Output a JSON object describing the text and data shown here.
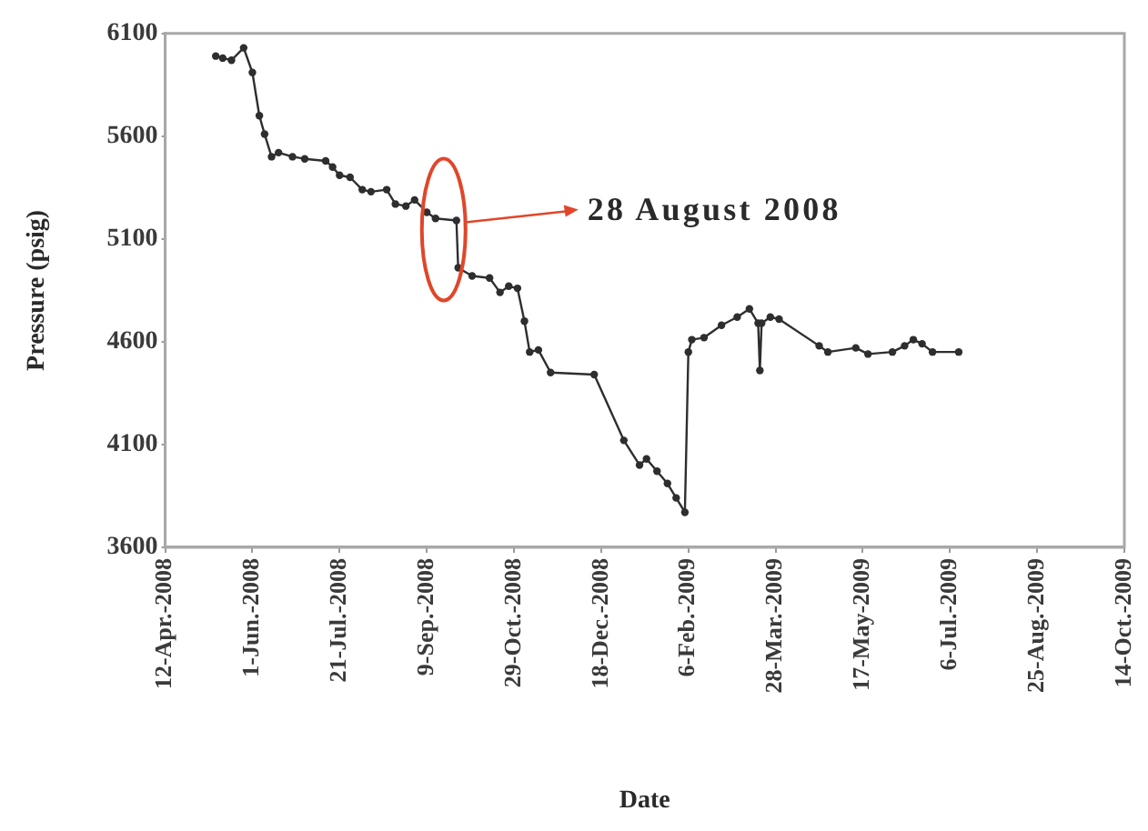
{
  "chart_data": {
    "type": "line",
    "xlabel": "Date",
    "ylabel": "Pressure (psig)",
    "x": [
      "2008-05-11",
      "2008-05-15",
      "2008-05-20",
      "2008-05-27",
      "2008-06-01",
      "2008-06-05",
      "2008-06-08",
      "2008-06-12",
      "2008-06-16",
      "2008-06-24",
      "2008-07-01",
      "2008-07-13",
      "2008-07-17",
      "2008-07-21",
      "2008-07-27",
      "2008-08-03",
      "2008-08-08",
      "2008-08-17",
      "2008-08-22",
      "2008-08-28",
      "2008-09-02",
      "2008-09-09",
      "2008-09-14",
      "2008-09-26",
      "2008-09-27",
      "2008-10-05",
      "2008-10-15",
      "2008-10-21",
      "2008-10-26",
      "2008-10-31",
      "2008-11-04",
      "2008-11-07",
      "2008-11-12",
      "2008-11-19",
      "2008-12-14",
      "2008-12-31",
      "2009-01-09",
      "2009-01-13",
      "2009-01-19",
      "2009-01-25",
      "2009-01-30",
      "2009-02-04",
      "2009-02-06",
      "2009-02-08",
      "2009-02-15",
      "2009-02-25",
      "2009-03-06",
      "2009-03-13",
      "2009-03-18",
      "2009-03-19",
      "2009-03-20",
      "2009-03-25",
      "2009-03-30",
      "2009-04-22",
      "2009-04-27",
      "2009-05-13",
      "2009-05-20",
      "2009-06-03",
      "2009-06-10",
      "2009-06-15",
      "2009-06-20",
      "2009-06-26",
      "2009-07-11"
    ],
    "series": [
      {
        "color": "#2e2e2e",
        "values": [
          5990,
          5980,
          5970,
          6030,
          5910,
          5700,
          5610,
          5500,
          5520,
          5500,
          5490,
          5480,
          5450,
          5410,
          5400,
          5340,
          5330,
          5340,
          5270,
          5260,
          5290,
          5230,
          5200,
          5190,
          4960,
          4920,
          4910,
          4840,
          4870,
          4860,
          4700,
          4550,
          4560,
          4450,
          4440,
          4120,
          4000,
          4030,
          3970,
          3910,
          3840,
          3770,
          4550,
          4610,
          4620,
          4680,
          4720,
          4760,
          4690,
          4460,
          4690,
          4720,
          4710,
          4580,
          4550,
          4570,
          4540,
          4550,
          4580,
          4610,
          4590,
          4550,
          4550
        ]
      }
    ],
    "xlim": [
      "2008-04-12",
      "2009-10-14"
    ],
    "xticks": [
      {
        "value": "2008-04-12",
        "label": "12-Apr.-2008"
      },
      {
        "value": "2008-06-01",
        "label": "1-Jun.-2008"
      },
      {
        "value": "2008-07-21",
        "label": "21-Jul.-2008"
      },
      {
        "value": "2008-09-09",
        "label": "9-Sep.-2008"
      },
      {
        "value": "2008-10-29",
        "label": "29-Oct.-2008"
      },
      {
        "value": "2008-12-18",
        "label": "18-Dec.-2008"
      },
      {
        "value": "2009-02-06",
        "label": "6-Feb.-2009"
      },
      {
        "value": "2009-03-28",
        "label": "28-Mar.-2009"
      },
      {
        "value": "2009-05-17",
        "label": "17-May-2009"
      },
      {
        "value": "2009-07-06",
        "label": "6-Jul.-2009"
      },
      {
        "value": "2009-08-25",
        "label": "25-Aug.-2009"
      },
      {
        "value": "2009-10-14",
        "label": "14-Oct.-2009"
      }
    ],
    "ylim": [
      3600,
      6100
    ],
    "yticks": [
      3600,
      4100,
      4600,
      5100,
      5600,
      6100
    ],
    "marker": "circle",
    "line_style": "solid",
    "annotations": [
      {
        "text": "28 August 2008",
        "x": "2008-09-26",
        "y": 5190
      }
    ]
  }
}
